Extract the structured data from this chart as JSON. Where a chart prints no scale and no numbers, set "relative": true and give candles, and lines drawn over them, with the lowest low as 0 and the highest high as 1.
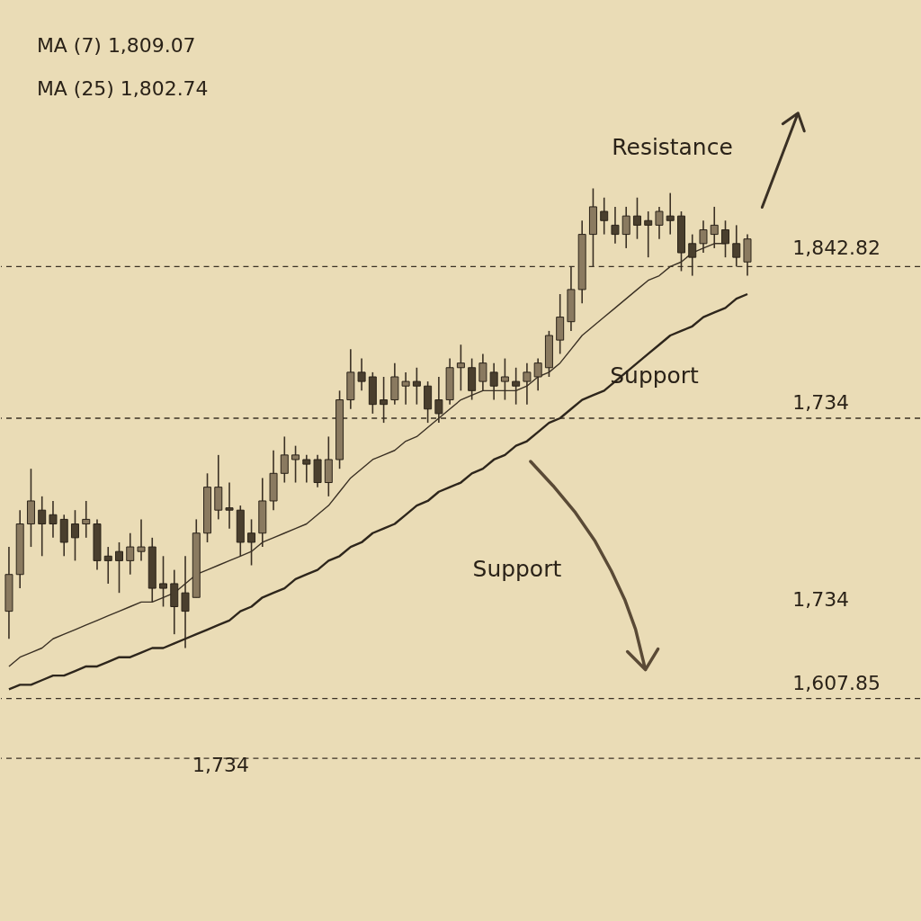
{
  "chart_data": {
    "type": "candlestick",
    "relative": true,
    "categories": [
      null,
      null,
      null,
      null,
      null,
      null,
      null,
      null,
      null,
      null,
      null,
      null,
      null,
      null,
      null,
      null,
      null,
      null,
      null,
      null,
      null,
      null,
      null,
      null,
      null,
      null,
      null,
      null,
      null,
      null,
      null,
      null,
      null,
      null,
      null,
      null,
      null,
      null,
      null,
      null,
      null,
      null,
      null,
      null,
      null,
      null,
      null,
      null,
      null,
      null,
      null,
      null,
      null,
      null,
      null,
      null,
      null,
      null,
      null,
      null,
      null,
      null,
      null,
      null,
      null,
      null,
      null,
      null
    ],
    "ohlc": [
      [
        0.08,
        0.22,
        0.02,
        0.16
      ],
      [
        0.16,
        0.3,
        0.13,
        0.27
      ],
      [
        0.27,
        0.39,
        0.22,
        0.32
      ],
      [
        0.3,
        0.33,
        0.2,
        0.27
      ],
      [
        0.29,
        0.32,
        0.24,
        0.27
      ],
      [
        0.28,
        0.29,
        0.2,
        0.23
      ],
      [
        0.27,
        0.3,
        0.19,
        0.24
      ],
      [
        0.27,
        0.32,
        0.24,
        0.28
      ],
      [
        0.27,
        0.28,
        0.17,
        0.19
      ],
      [
        0.2,
        0.22,
        0.14,
        0.19
      ],
      [
        0.21,
        0.23,
        0.12,
        0.19
      ],
      [
        0.19,
        0.25,
        0.16,
        0.22
      ],
      [
        0.21,
        0.28,
        0.19,
        0.22
      ],
      [
        0.22,
        0.24,
        0.1,
        0.13
      ],
      [
        0.14,
        0.2,
        0.09,
        0.13
      ],
      [
        0.14,
        0.17,
        0.03,
        0.09
      ],
      [
        0.12,
        0.2,
        0.0,
        0.08
      ],
      [
        0.11,
        0.28,
        0.11,
        0.25
      ],
      [
        0.25,
        0.38,
        0.23,
        0.35
      ],
      [
        0.3,
        0.42,
        0.28,
        0.35
      ],
      [
        0.305,
        0.36,
        0.26,
        0.3
      ],
      [
        0.3,
        0.31,
        0.2,
        0.23
      ],
      [
        0.25,
        0.28,
        0.18,
        0.23
      ],
      [
        0.25,
        0.37,
        0.22,
        0.32
      ],
      [
        0.32,
        0.43,
        0.3,
        0.38
      ],
      [
        0.38,
        0.46,
        0.36,
        0.42
      ],
      [
        0.41,
        0.44,
        0.36,
        0.42
      ],
      [
        0.41,
        0.42,
        0.36,
        0.4
      ],
      [
        0.41,
        0.42,
        0.35,
        0.36
      ],
      [
        0.36,
        0.46,
        0.33,
        0.41
      ],
      [
        0.41,
        0.56,
        0.39,
        0.54
      ],
      [
        0.54,
        0.65,
        0.52,
        0.6
      ],
      [
        0.6,
        0.63,
        0.56,
        0.58
      ],
      [
        0.59,
        0.6,
        0.51,
        0.53
      ],
      [
        0.54,
        0.59,
        0.49,
        0.53
      ],
      [
        0.54,
        0.62,
        0.53,
        0.59
      ],
      [
        0.57,
        0.6,
        0.53,
        0.58
      ],
      [
        0.58,
        0.61,
        0.53,
        0.57
      ],
      [
        0.57,
        0.58,
        0.49,
        0.52
      ],
      [
        0.54,
        0.59,
        0.49,
        0.51
      ],
      [
        0.54,
        0.63,
        0.53,
        0.61
      ],
      [
        0.61,
        0.66,
        0.56,
        0.62
      ],
      [
        0.61,
        0.63,
        0.54,
        0.56
      ],
      [
        0.58,
        0.64,
        0.56,
        0.62
      ],
      [
        0.6,
        0.62,
        0.54,
        0.57
      ],
      [
        0.58,
        0.63,
        0.54,
        0.59
      ],
      [
        0.58,
        0.61,
        0.53,
        0.57
      ],
      [
        0.58,
        0.62,
        0.53,
        0.6
      ],
      [
        0.59,
        0.63,
        0.56,
        0.62
      ],
      [
        0.61,
        0.69,
        0.59,
        0.68
      ],
      [
        0.67,
        0.77,
        0.64,
        0.72
      ],
      [
        0.71,
        0.83,
        0.69,
        0.78
      ],
      [
        0.78,
        0.93,
        0.75,
        0.9
      ],
      [
        0.9,
        1.0,
        0.83,
        0.96
      ],
      [
        0.95,
        0.98,
        0.9,
        0.93
      ],
      [
        0.92,
        0.96,
        0.88,
        0.9
      ],
      [
        0.9,
        0.96,
        0.87,
        0.94
      ],
      [
        0.94,
        0.98,
        0.89,
        0.92
      ],
      [
        0.93,
        0.95,
        0.85,
        0.92
      ],
      [
        0.92,
        0.96,
        0.89,
        0.95
      ],
      [
        0.94,
        0.99,
        0.9,
        0.93
      ],
      [
        0.94,
        0.95,
        0.82,
        0.86
      ],
      [
        0.88,
        0.9,
        0.81,
        0.85
      ],
      [
        0.88,
        0.93,
        0.86,
        0.91
      ],
      [
        0.9,
        0.96,
        0.87,
        0.92
      ],
      [
        0.91,
        0.93,
        0.85,
        0.88
      ],
      [
        0.88,
        0.92,
        0.83,
        0.85
      ],
      [
        0.84,
        0.9,
        0.81,
        0.89
      ]
    ],
    "colors": [
      "#8a7a60",
      "#8a7a60",
      "#8a7a60",
      "#4a3f2e",
      "#4a3f2e",
      "#4a3f2e",
      "#4a3f2e",
      "#8a7a60",
      "#4a3f2e",
      "#4a3f2e",
      "#4a3f2e",
      "#8a7a60",
      "#8a7a60",
      "#4a3f2e",
      "#4a3f2e",
      "#4a3f2e",
      "#4a3f2e",
      "#8a7a60",
      "#8a7a60",
      "#8a7a60",
      "#4a3f2e",
      "#4a3f2e",
      "#4a3f2e",
      "#8a7a60",
      "#8a7a60",
      "#8a7a60",
      "#8a7a60",
      "#4a3f2e",
      "#4a3f2e",
      "#8a7a60",
      "#8a7a60",
      "#8a7a60",
      "#4a3f2e",
      "#4a3f2e",
      "#4a3f2e",
      "#8a7a60",
      "#8a7a60",
      "#4a3f2e",
      "#4a3f2e",
      "#4a3f2e",
      "#8a7a60",
      "#8a7a60",
      "#4a3f2e",
      "#8a7a60",
      "#4a3f2e",
      "#8a7a60",
      "#4a3f2e",
      "#8a7a60",
      "#8a7a60",
      "#8a7a60",
      "#8a7a60",
      "#8a7a60",
      "#8a7a60",
      "#8a7a60",
      "#4a3f2e",
      "#4a3f2e",
      "#8a7a60",
      "#4a3f2e",
      "#4a3f2e",
      "#8a7a60",
      "#4a3f2e",
      "#4a3f2e",
      "#4a3f2e",
      "#8a7a60",
      "#8a7a60",
      "#4a3f2e",
      "#4a3f2e",
      "#8a7a60"
    ],
    "series": [
      {
        "type": "line",
        "color": "#3a3024",
        "line_style": "solid",
        "values": [
          -0.04,
          -0.02,
          -0.01,
          0.0,
          0.02,
          0.03,
          0.04,
          0.05,
          0.06,
          0.07,
          0.08,
          0.09,
          0.1,
          0.1,
          0.11,
          0.12,
          0.14,
          0.16,
          0.17,
          0.18,
          0.19,
          0.2,
          0.21,
          0.23,
          0.24,
          0.25,
          0.26,
          0.27,
          0.29,
          0.31,
          0.34,
          0.37,
          0.39,
          0.41,
          0.42,
          0.43,
          0.45,
          0.46,
          0.48,
          0.5,
          0.52,
          0.54,
          0.55,
          0.56,
          0.56,
          0.56,
          0.56,
          0.57,
          0.59,
          0.6,
          0.62,
          0.65,
          0.68,
          0.7,
          0.72,
          0.74,
          0.76,
          0.78,
          0.8,
          0.81,
          0.83,
          0.84,
          0.86,
          0.87,
          0.88,
          0.88,
          null,
          null
        ]
      },
      {
        "type": "line",
        "color": "#2e261c",
        "line_style": "solid",
        "values": [
          -0.09,
          -0.08,
          -0.08,
          -0.07,
          -0.06,
          -0.06,
          -0.05,
          -0.04,
          -0.04,
          -0.03,
          -0.02,
          -0.02,
          -0.01,
          0.0,
          0.0,
          0.01,
          0.02,
          0.03,
          0.04,
          0.05,
          0.06,
          0.08,
          0.09,
          0.11,
          0.12,
          0.13,
          0.15,
          0.16,
          0.17,
          0.19,
          0.2,
          0.22,
          0.23,
          0.25,
          0.26,
          0.27,
          0.29,
          0.31,
          0.32,
          0.34,
          0.35,
          0.36,
          0.38,
          0.39,
          0.41,
          0.42,
          0.44,
          0.45,
          0.47,
          0.49,
          0.5,
          0.52,
          0.54,
          0.55,
          0.56,
          0.58,
          0.6,
          0.62,
          0.64,
          0.66,
          0.68,
          0.69,
          0.7,
          0.72,
          0.73,
          0.74,
          0.76,
          0.77
        ]
      }
    ],
    "ref_lines": [
      {
        "axis": "y",
        "value": 0.83,
        "label": null,
        "line_style": "dashed",
        "color": "#3a3024"
      },
      {
        "axis": "y",
        "value": 0.5,
        "label": null,
        "line_style": "dashed",
        "color": "#3a3024"
      },
      {
        "axis": "y",
        "value": -0.11,
        "label": null,
        "line_style": "dashed",
        "color": "#3a3024"
      },
      {
        "axis": "y",
        "value": -0.24,
        "label": null,
        "line_style": "dashed",
        "color": "#3a3024"
      }
    ],
    "annotations": [
      "MA (7)  1,809.07",
      "MA (25)  1,802.74",
      "Resistance",
      "Support",
      "Support",
      "1,842.82",
      "1,734",
      "1,734",
      "1,607.85",
      "1,734"
    ],
    "tick_labels": false
  }
}
